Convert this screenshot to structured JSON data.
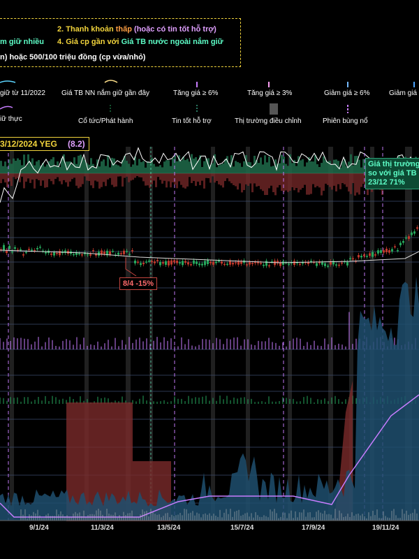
{
  "legend_box": {
    "line1_prefix": "m giữ nhiều",
    "line2_num": "2. Thanh khoản ",
    "line2_low": "thấp",
    "line2_rest": " (hoặc có tin tốt hỗ trợ)",
    "line4_a": "4. Giá cp gần với ",
    "line4_b": "Giá TB nước ngoài nắm giữ",
    "line3": "n) hoặc 500/100 triệu đồng (cp vừa/nhỏ)"
  },
  "legend_items": {
    "held_since": "giữ từ 11/2022",
    "nn_avg_recent": "Giá TB NN nắm giữ gần đây",
    "up6": "Tăng giá ≥ 6%",
    "up3": "Tăng giá ≥ 3%",
    "down6": "Giảm giá ≥ 6%",
    "down3": "Giảm giá",
    "actual_held": "iữ thực",
    "dividend": "Cổ tức/Phát hành",
    "good_news": "Tin tốt hỗ trợ",
    "correction": "Thị trường điều chỉnh",
    "burst": "Phiên bùng nổ"
  },
  "header": {
    "date_ticker": "3/12/2024  YEG",
    "score": "(8.2)"
  },
  "annotations": {
    "drop": "8/4 -15%",
    "market_line1": "Giá thị trường",
    "market_line2": "so với giá TB",
    "market_line3": "23/12 71%"
  },
  "colors": {
    "background": "#000000",
    "up": "#26a65b",
    "down": "#c0392b",
    "foreign_band_green": "#1f6b4a",
    "foreign_band_red": "#7a2a2a",
    "volume_area": "#1f4f6e",
    "purple_line": "#c77dff",
    "white_line": "#ffffff",
    "accent_yellow": "#f2d43c"
  },
  "chart_data": {
    "type": "line",
    "x_tick_labels": [
      "9/1/24",
      "11/3/24",
      "13/5/24",
      "15/7/24",
      "17/9/24",
      "19/11/24"
    ],
    "correction_periods": [
      "11/3/24",
      "13/5/24"
    ],
    "markers": [
      {
        "date": "8/4",
        "label": "8/4 -15%"
      },
      {
        "date": "23/12",
        "label": "23/12 71%"
      }
    ],
    "price_trend": [
      {
        "x": "9/1/24",
        "y": 0.45
      },
      {
        "x": "11/3/24",
        "y": 0.47
      },
      {
        "x": "8/4/24",
        "y": 0.4
      },
      {
        "x": "13/5/24",
        "y": 0.41
      },
      {
        "x": "15/7/24",
        "y": 0.41
      },
      {
        "x": "17/9/24",
        "y": 0.42
      },
      {
        "x": "19/11/24",
        "y": 0.46
      },
      {
        "x": "23/12/24",
        "y": 0.71
      }
    ],
    "foreign_holding_trend": [
      {
        "x": "9/1/24",
        "y": 0.05
      },
      {
        "x": "11/3/24",
        "y": 0.08
      },
      {
        "x": "13/5/24",
        "y": 0.1
      },
      {
        "x": "15/7/24",
        "y": 0.12
      },
      {
        "x": "17/9/24",
        "y": 0.13
      },
      {
        "x": "19/11/24",
        "y": 0.7
      }
    ],
    "grid": true
  }
}
